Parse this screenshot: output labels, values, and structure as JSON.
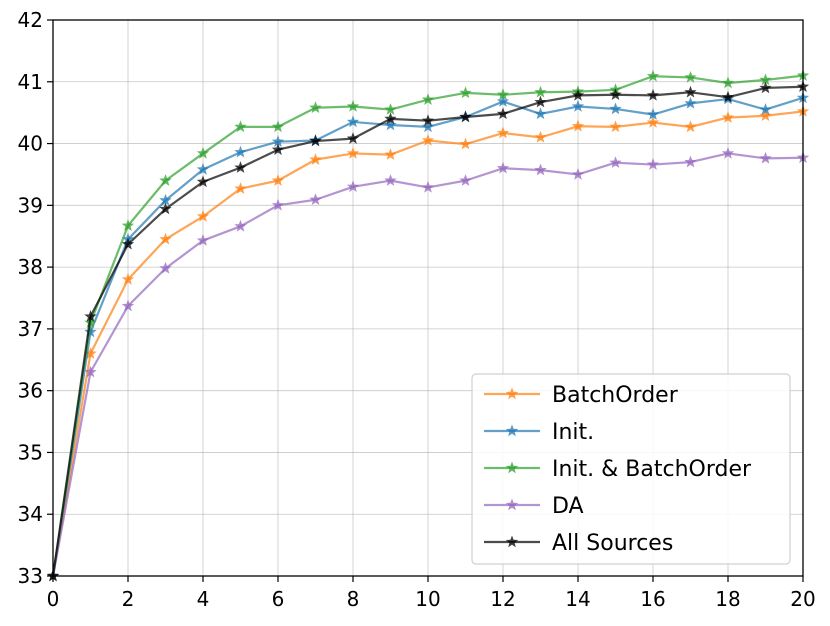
{
  "chart_data": {
    "type": "line",
    "title": "",
    "xlabel": "",
    "ylabel": "",
    "xlim": [
      0,
      20
    ],
    "ylim": [
      33,
      42
    ],
    "x_ticks": [
      "0",
      "2",
      "4",
      "6",
      "8",
      "10",
      "12",
      "14",
      "16",
      "18",
      "20"
    ],
    "y_ticks": [
      "33",
      "34",
      "35",
      "36",
      "37",
      "38",
      "39",
      "40",
      "41",
      "42"
    ],
    "grid": true,
    "legend_position": "lower-right",
    "marker": "star",
    "x": [
      0,
      1,
      2,
      3,
      4,
      5,
      6,
      7,
      8,
      9,
      10,
      11,
      12,
      13,
      14,
      15,
      16,
      17,
      18,
      19,
      20
    ],
    "series": [
      {
        "name": "BatchOrder",
        "color": "#ff7f0e",
        "values": [
          33.0,
          36.6,
          37.8,
          38.45,
          38.82,
          39.27,
          39.4,
          39.74,
          39.84,
          39.82,
          40.05,
          39.99,
          40.17,
          40.1,
          40.28,
          40.27,
          40.34,
          40.27,
          40.42,
          40.45,
          40.52
        ]
      },
      {
        "name": "Init.",
        "color": "#1f77b4",
        "values": [
          33.0,
          36.95,
          38.45,
          39.08,
          39.58,
          39.86,
          40.03,
          40.05,
          40.35,
          40.3,
          40.27,
          40.43,
          40.68,
          40.48,
          40.6,
          40.56,
          40.47,
          40.65,
          40.72,
          40.55,
          40.74
        ]
      },
      {
        "name": "Init. & BatchOrder",
        "color": "#2ca02c",
        "values": [
          33.0,
          37.1,
          38.67,
          39.4,
          39.84,
          40.27,
          40.27,
          40.58,
          40.6,
          40.55,
          40.71,
          40.82,
          40.79,
          40.83,
          40.84,
          40.87,
          41.09,
          41.07,
          40.98,
          41.03,
          41.1
        ]
      },
      {
        "name": "DA",
        "color": "#9467bd",
        "values": [
          33.0,
          36.3,
          37.37,
          37.98,
          38.43,
          38.66,
          39.0,
          39.09,
          39.3,
          39.4,
          39.29,
          39.4,
          39.6,
          39.57,
          39.5,
          39.69,
          39.66,
          39.7,
          39.84,
          39.76,
          39.77
        ]
      },
      {
        "name": "All Sources",
        "color": "#000000",
        "values": [
          33.0,
          37.2,
          38.37,
          38.94,
          39.38,
          39.61,
          39.9,
          40.04,
          40.08,
          40.4,
          40.37,
          40.43,
          40.48,
          40.67,
          40.78,
          40.79,
          40.78,
          40.83,
          40.75,
          40.9,
          40.92
        ]
      }
    ]
  }
}
